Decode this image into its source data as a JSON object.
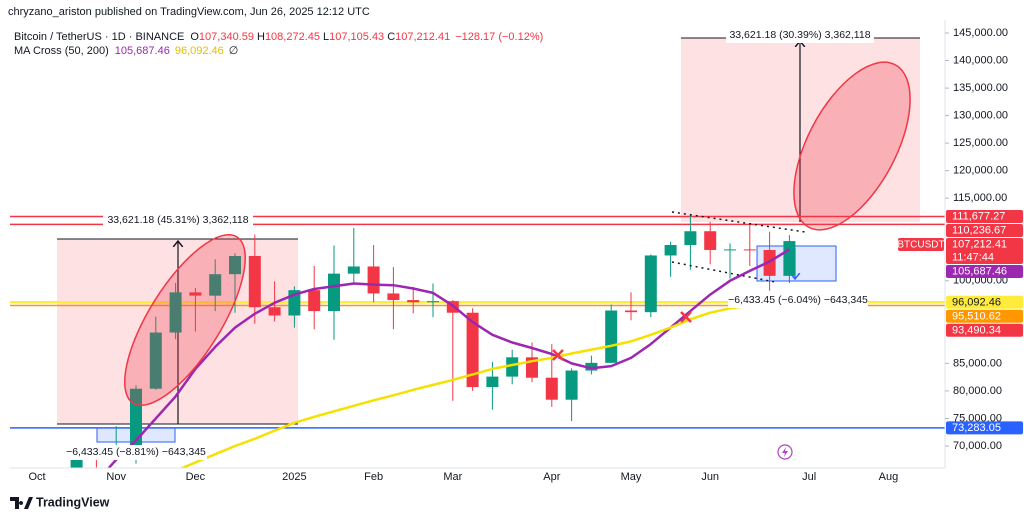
{
  "header": {
    "publisher": "chryzano_ariston published on TradingView.com, Jun 26, 2025 12:12 UTC"
  },
  "chart_data": {
    "type": "candlestick",
    "title": "Bitcoin / TetherUS · 1D · BINANCE",
    "ohlc": [
      {
        "label": "O",
        "value": "107,340.59"
      },
      {
        "label": "H",
        "value": "108,272.45"
      },
      {
        "label": "L",
        "value": "107,105.43"
      },
      {
        "label": "C",
        "value": "107,212.41"
      }
    ],
    "change": "−128.17 (−0.12%)",
    "indicator": {
      "name": "MA Cross (50, 200)",
      "values": [
        "105,687.46",
        "96,092.46"
      ],
      "symbol": "∅"
    },
    "categories": [
      "Oct",
      null,
      null,
      null,
      "Nov",
      null,
      null,
      null,
      "Dec",
      null,
      null,
      null,
      null,
      "2025",
      null,
      null,
      null,
      "Feb",
      null,
      null,
      null,
      "Mar",
      null,
      null,
      null,
      null,
      "Apr",
      null,
      null,
      null,
      "May",
      null,
      null,
      null,
      "Jun",
      null,
      null,
      null,
      null,
      "Jul",
      null,
      null,
      null,
      "Aug",
      null,
      null
    ],
    "open": [
      63300,
      62900,
      62800,
      69000,
      68000,
      68700,
      80400,
      90600,
      97900,
      97300,
      101200,
      104500,
      95200,
      93700,
      98300,
      94500,
      101300,
      102600,
      97700,
      96500,
      96100,
      96300,
      94200,
      80700,
      82600,
      86100,
      82400,
      78400,
      83700,
      85100,
      94600,
      94300,
      104600,
      106500,
      109000,
      105600,
      105700,
      105600,
      100900,
      null,
      null,
      null,
      null,
      null,
      null,
      null
    ],
    "high": [
      64500,
      64500,
      69500,
      69500,
      73600,
      81000,
      93500,
      99600,
      98700,
      103900,
      105000,
      108400,
      99900,
      99000,
      102700,
      106400,
      109600,
      106500,
      102500,
      98900,
      99500,
      96500,
      95000,
      85300,
      87500,
      88800,
      88500,
      84100,
      86400,
      95700,
      97900,
      104800,
      107100,
      111900,
      110700,
      106800,
      110400,
      108900,
      108300,
      null,
      null,
      null,
      null,
      null,
      null,
      null
    ],
    "low": [
      59800,
      58900,
      62000,
      65000,
      67500,
      66800,
      80200,
      89400,
      90800,
      94500,
      94200,
      92200,
      92600,
      91500,
      91200,
      89300,
      99500,
      96100,
      91200,
      94100,
      93400,
      78200,
      80000,
      76600,
      81200,
      81600,
      77100,
      74500,
      83000,
      85100,
      92800,
      93400,
      100700,
      102000,
      103000,
      100400,
      102700,
      98200,
      99600,
      null,
      null,
      null,
      null,
      null,
      null,
      null
    ],
    "close": [
      62900,
      62800,
      69000,
      68000,
      68700,
      80400,
      90600,
      97900,
      97300,
      101200,
      104500,
      95200,
      93700,
      98300,
      94500,
      101300,
      102600,
      97700,
      96500,
      96100,
      96300,
      94200,
      80700,
      82600,
      86100,
      82400,
      78400,
      83700,
      85100,
      94600,
      94300,
      104600,
      106500,
      109000,
      105600,
      105700,
      105600,
      100900,
      107212.41,
      null,
      null,
      null,
      null,
      null,
      null,
      null
    ],
    "up_color": "#089981",
    "down_color": "#f23645",
    "ma_lines": [
      {
        "color": "#9c27b0",
        "values": [
          60000,
          60500,
          61500,
          63500,
          67500,
          71000,
          75000,
          79000,
          84000,
          88000,
          91500,
          94000,
          96000,
          97500,
          98500,
          99000,
          99500,
          99300,
          99200,
          98600,
          97800,
          95500,
          92500,
          90200,
          88800,
          87800,
          86700,
          85000,
          84100,
          84500,
          86000,
          88500,
          91500,
          94500,
          97500,
          100000,
          101800,
          103500,
          105687.46,
          null,
          null,
          null,
          null,
          null,
          null,
          null
        ]
      },
      {
        "color": "#f5e100",
        "values": [
          58500,
          59000,
          59500,
          60000,
          61000,
          62500,
          64000,
          65500,
          67000,
          68500,
          70000,
          71300,
          72800,
          74200,
          75300,
          76300,
          77300,
          78300,
          79200,
          80200,
          81100,
          82000,
          83000,
          84000,
          84700,
          85400,
          86000,
          86800,
          87500,
          88200,
          89000,
          90200,
          91500,
          93000,
          94200,
          95000,
          95500,
          95900,
          96092.46,
          null,
          null,
          null,
          null,
          null,
          null,
          null
        ]
      }
    ],
    "ylim": [
      66000,
      147000
    ],
    "yticks": [
      {
        "value": 70000,
        "label": "70,000.00"
      },
      {
        "value": 75000,
        "label": "75,000.00"
      },
      {
        "value": 80000,
        "label": "80,000.00"
      },
      {
        "value": 85000,
        "label": "85,000.00"
      },
      {
        "value": 100000,
        "label": "100,000.00"
      },
      {
        "value": 115000,
        "label": "115,000.00"
      },
      {
        "value": 120000,
        "label": "120,000.00"
      },
      {
        "value": 125000,
        "label": "125,000.00"
      },
      {
        "value": 130000,
        "label": "130,000.00"
      },
      {
        "value": 135000,
        "label": "135,000.00"
      },
      {
        "value": 140000,
        "label": "140,000.00"
      },
      {
        "value": 145000,
        "label": "145,000.00"
      }
    ],
    "price_tags": [
      {
        "value": 111677.27,
        "label": "111,677.27",
        "color": "#f23645",
        "line": true
      },
      {
        "value": 110236.67,
        "label": "110,236.67",
        "color": "#f23645",
        "line": true
      },
      {
        "value": 107212.41,
        "label": "107,212.41",
        "color": "#f23645",
        "line": false,
        "countdown": "11:47:44",
        "symbol": "BTCUSDT"
      },
      {
        "value": 105687.46,
        "label": "105,687.46",
        "color": "#9c27b0",
        "line": false
      },
      {
        "value": 96092.46,
        "label": "96,092.46",
        "color": "#ffeb3b",
        "text_color": "#131722",
        "line": true
      },
      {
        "value": 95510.62,
        "label": "95,510.62",
        "color": "#ff9800",
        "line": true
      },
      {
        "value": 93490.34,
        "label": "93,490.34",
        "color": "#f23645",
        "line": false
      },
      {
        "value": 73283.05,
        "label": "73,283.05",
        "color": "#2962ff",
        "line": true
      }
    ],
    "annotations": {
      "measure_up_left": "33,621.18 (45.31%) 3,362,118",
      "measure_down_left": "−6,433.45 (−8.81%) −643,345",
      "measure_up_right": "33,621.18 (30.39%) 3,362,118",
      "measure_down_right": "−6,433.45 (−6.04%) −643,345"
    }
  },
  "footer": {
    "logo": "TradingView"
  }
}
